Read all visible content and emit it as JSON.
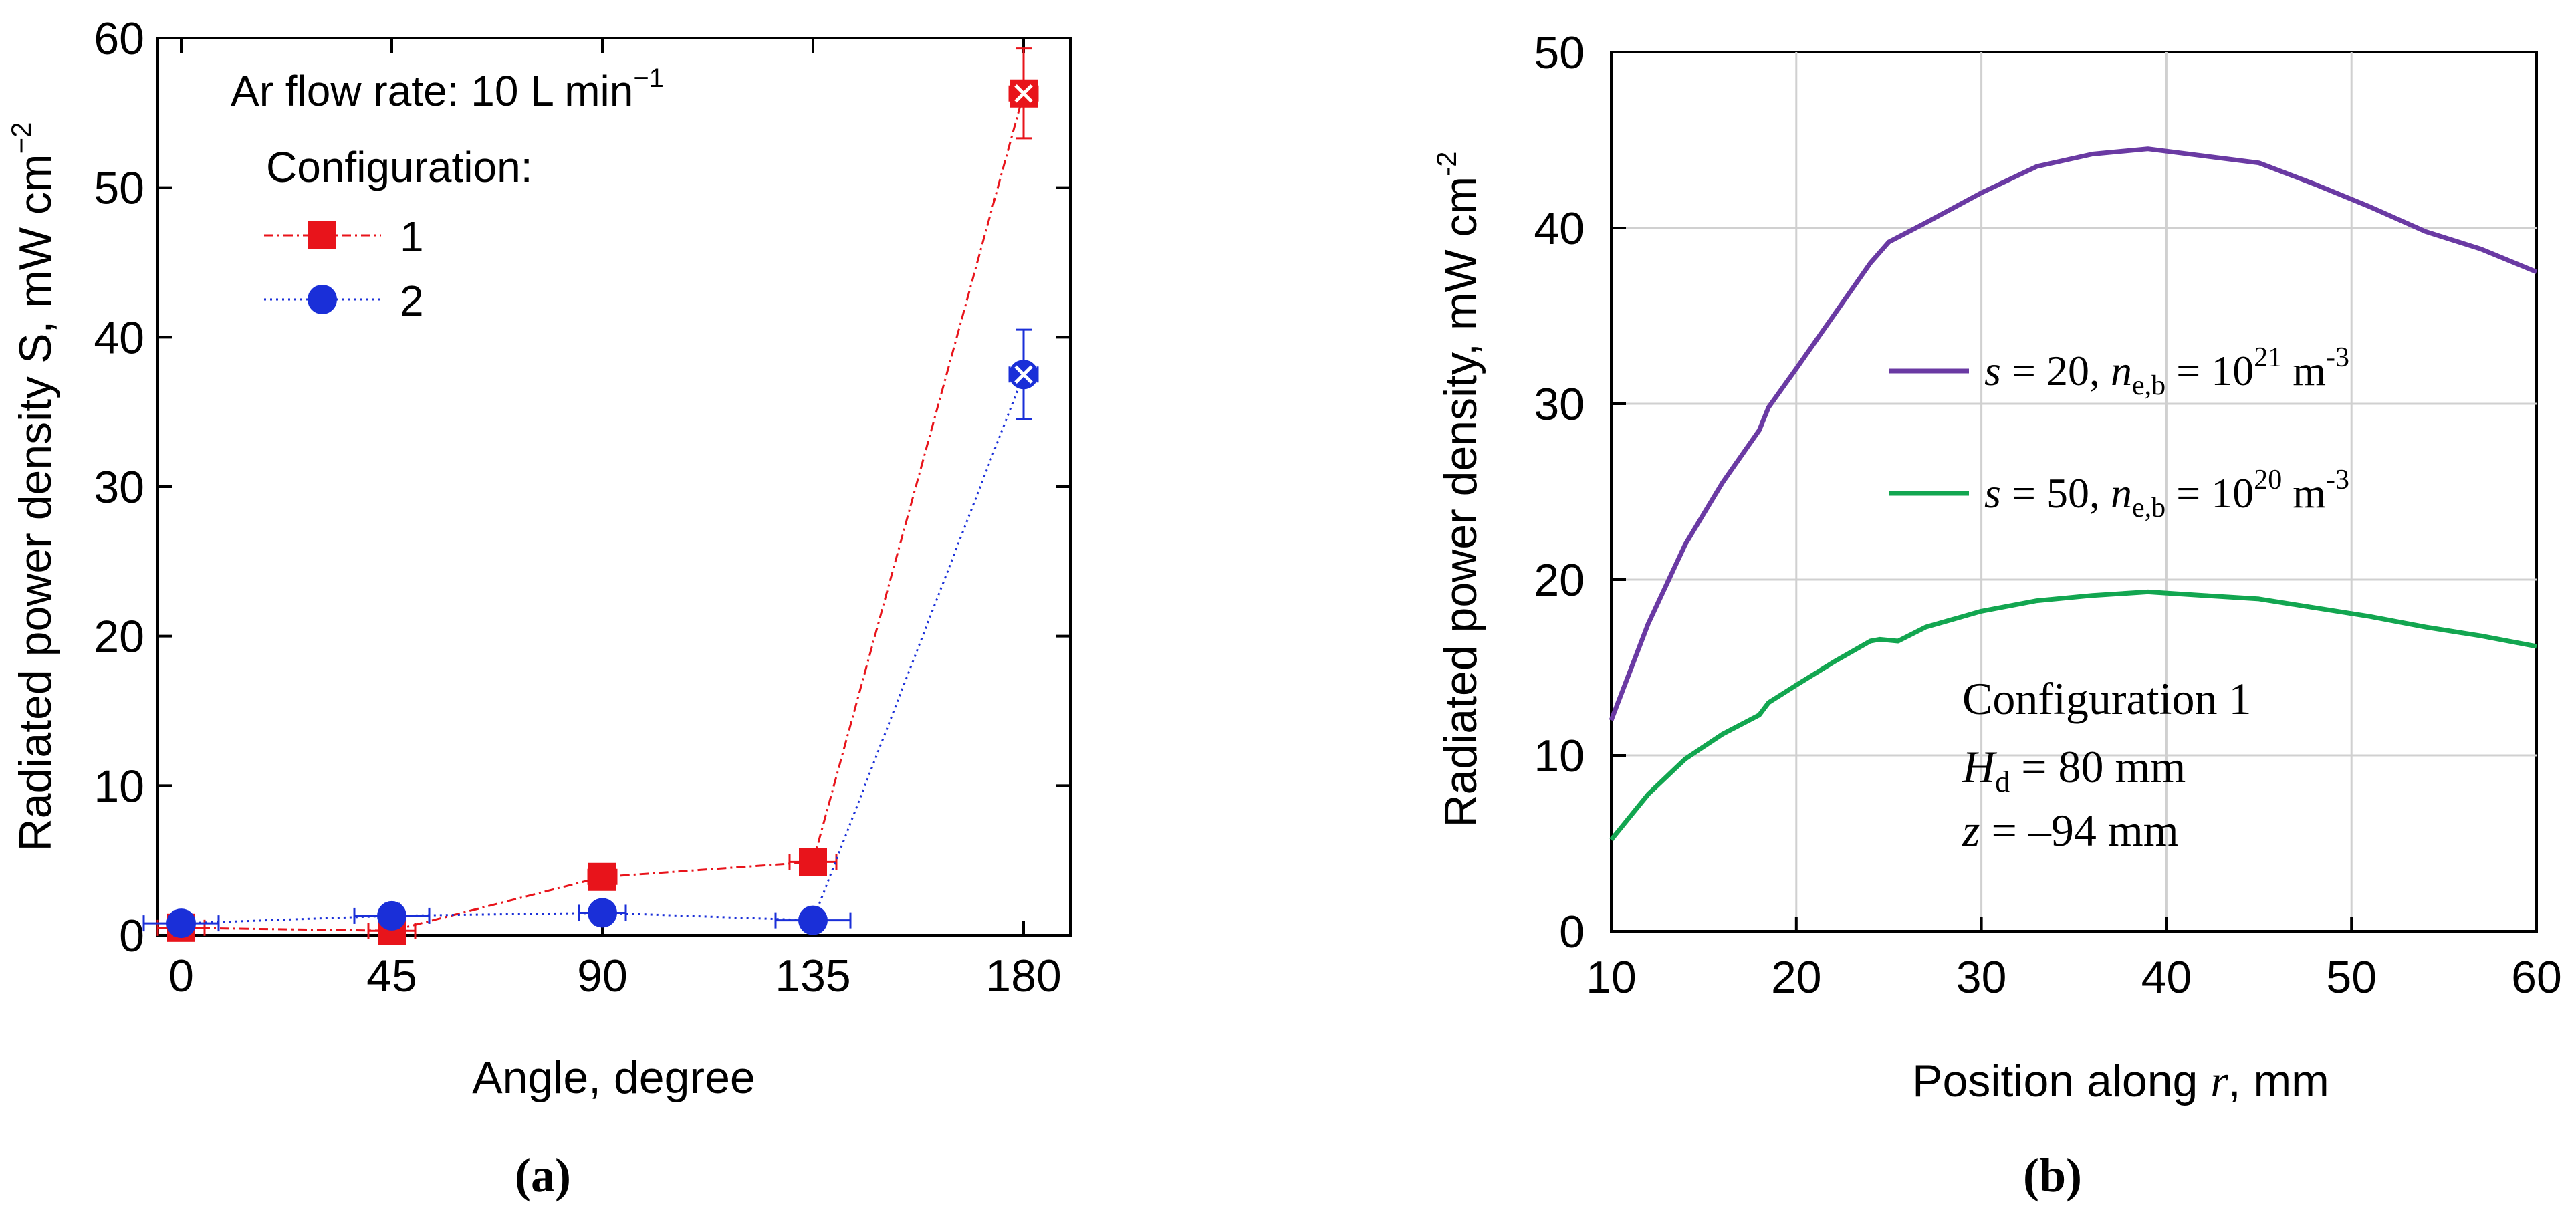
{
  "chart_data": [
    {
      "type": "scatter",
      "panel_label": "(a)",
      "xlabel": "Angle, degree",
      "ylabel": "Radiated power density S, mW cm",
      "ylabel_exp": "−2",
      "xlim": [
        -5,
        190
      ],
      "ylim": [
        0,
        60
      ],
      "xticks": [
        0,
        45,
        90,
        135,
        180
      ],
      "yticks": [
        0,
        10,
        20,
        30,
        40,
        50,
        60
      ],
      "annotation": {
        "text": "Ar flow rate: 10 L min",
        "exp": "−1"
      },
      "legend_title": "Configuration:",
      "series": [
        {
          "name": "1",
          "color": "#e8141b",
          "marker": "square",
          "linestyle": "dash-dot",
          "x": [
            0,
            45,
            90,
            135,
            180
          ],
          "y": [
            0.5,
            0.3,
            3.9,
            4.9,
            56.3
          ],
          "y_err": [
            0.5,
            0.4,
            0.8,
            0.7,
            3.0
          ],
          "x_err": [
            5,
            5,
            3,
            5,
            3
          ]
        },
        {
          "name": "2",
          "color": "#1a2fd8",
          "marker": "circle",
          "linestyle": "dotted",
          "x": [
            0,
            45,
            90,
            135,
            180
          ],
          "y": [
            0.8,
            1.3,
            1.5,
            1.0,
            37.5
          ],
          "y_err": [
            0.8,
            0.8,
            0.8,
            0.6,
            3.0
          ],
          "x_err": [
            8,
            8,
            5,
            8,
            3
          ]
        }
      ]
    },
    {
      "type": "line",
      "panel_label": "(b)",
      "xlabel": "Position along ",
      "xlabel_var": "r",
      "xlabel_unit": ", mm",
      "ylabel": "Radiated power density, mW cm",
      "ylabel_exp": "-2",
      "xlim": [
        10,
        60
      ],
      "ylim": [
        0,
        50
      ],
      "xticks": [
        10,
        20,
        30,
        40,
        50,
        60
      ],
      "yticks": [
        0,
        10,
        20,
        30,
        40,
        50
      ],
      "annotation_lines": [
        "Configuration 1",
        "H",
        "d",
        " = 80 mm",
        "z",
        " = –94 mm"
      ],
      "series": [
        {
          "name": "s = 20, ne,b = 10^21 m^-3",
          "legend": {
            "s": "s",
            "s_val": " = 20, ",
            "n": "n",
            "n_sub": "e,b",
            "n_val": " = 10",
            "n_exp": "21",
            "unit": " m",
            "unit_exp": "-3"
          },
          "color": "#6a3aa3",
          "x": [
            10,
            12,
            14,
            16,
            18,
            18.5,
            20,
            22,
            24,
            25,
            27,
            30,
            33,
            36,
            39,
            42,
            45,
            48,
            51,
            54,
            57,
            60
          ],
          "y": [
            12,
            17.5,
            22,
            25.5,
            28.5,
            29.8,
            32,
            35,
            38,
            39.2,
            40.3,
            42,
            43.5,
            44.2,
            44.5,
            44.1,
            43.7,
            42.5,
            41.2,
            39.8,
            38.8,
            37.5
          ]
        },
        {
          "name": "s = 50, ne,b = 10^20 m^-3",
          "legend": {
            "s": "s",
            "s_val": " = 50, ",
            "n": "n",
            "n_sub": "e,b",
            "n_val": " = 10",
            "n_exp": "20",
            "unit": " m",
            "unit_exp": "-3"
          },
          "color": "#12a650",
          "x": [
            10,
            12,
            14,
            16,
            18,
            18.5,
            20,
            22,
            24,
            24.5,
            25.5,
            27,
            30,
            33,
            36,
            39,
            42,
            45,
            48,
            51,
            54,
            57,
            60
          ],
          "y": [
            5.2,
            7.8,
            9.8,
            11.2,
            12.3,
            13,
            14,
            15.3,
            16.5,
            16.6,
            16.5,
            17.3,
            18.2,
            18.8,
            19.1,
            19.3,
            19.1,
            18.9,
            18.4,
            17.9,
            17.3,
            16.8,
            16.2
          ]
        }
      ]
    }
  ]
}
